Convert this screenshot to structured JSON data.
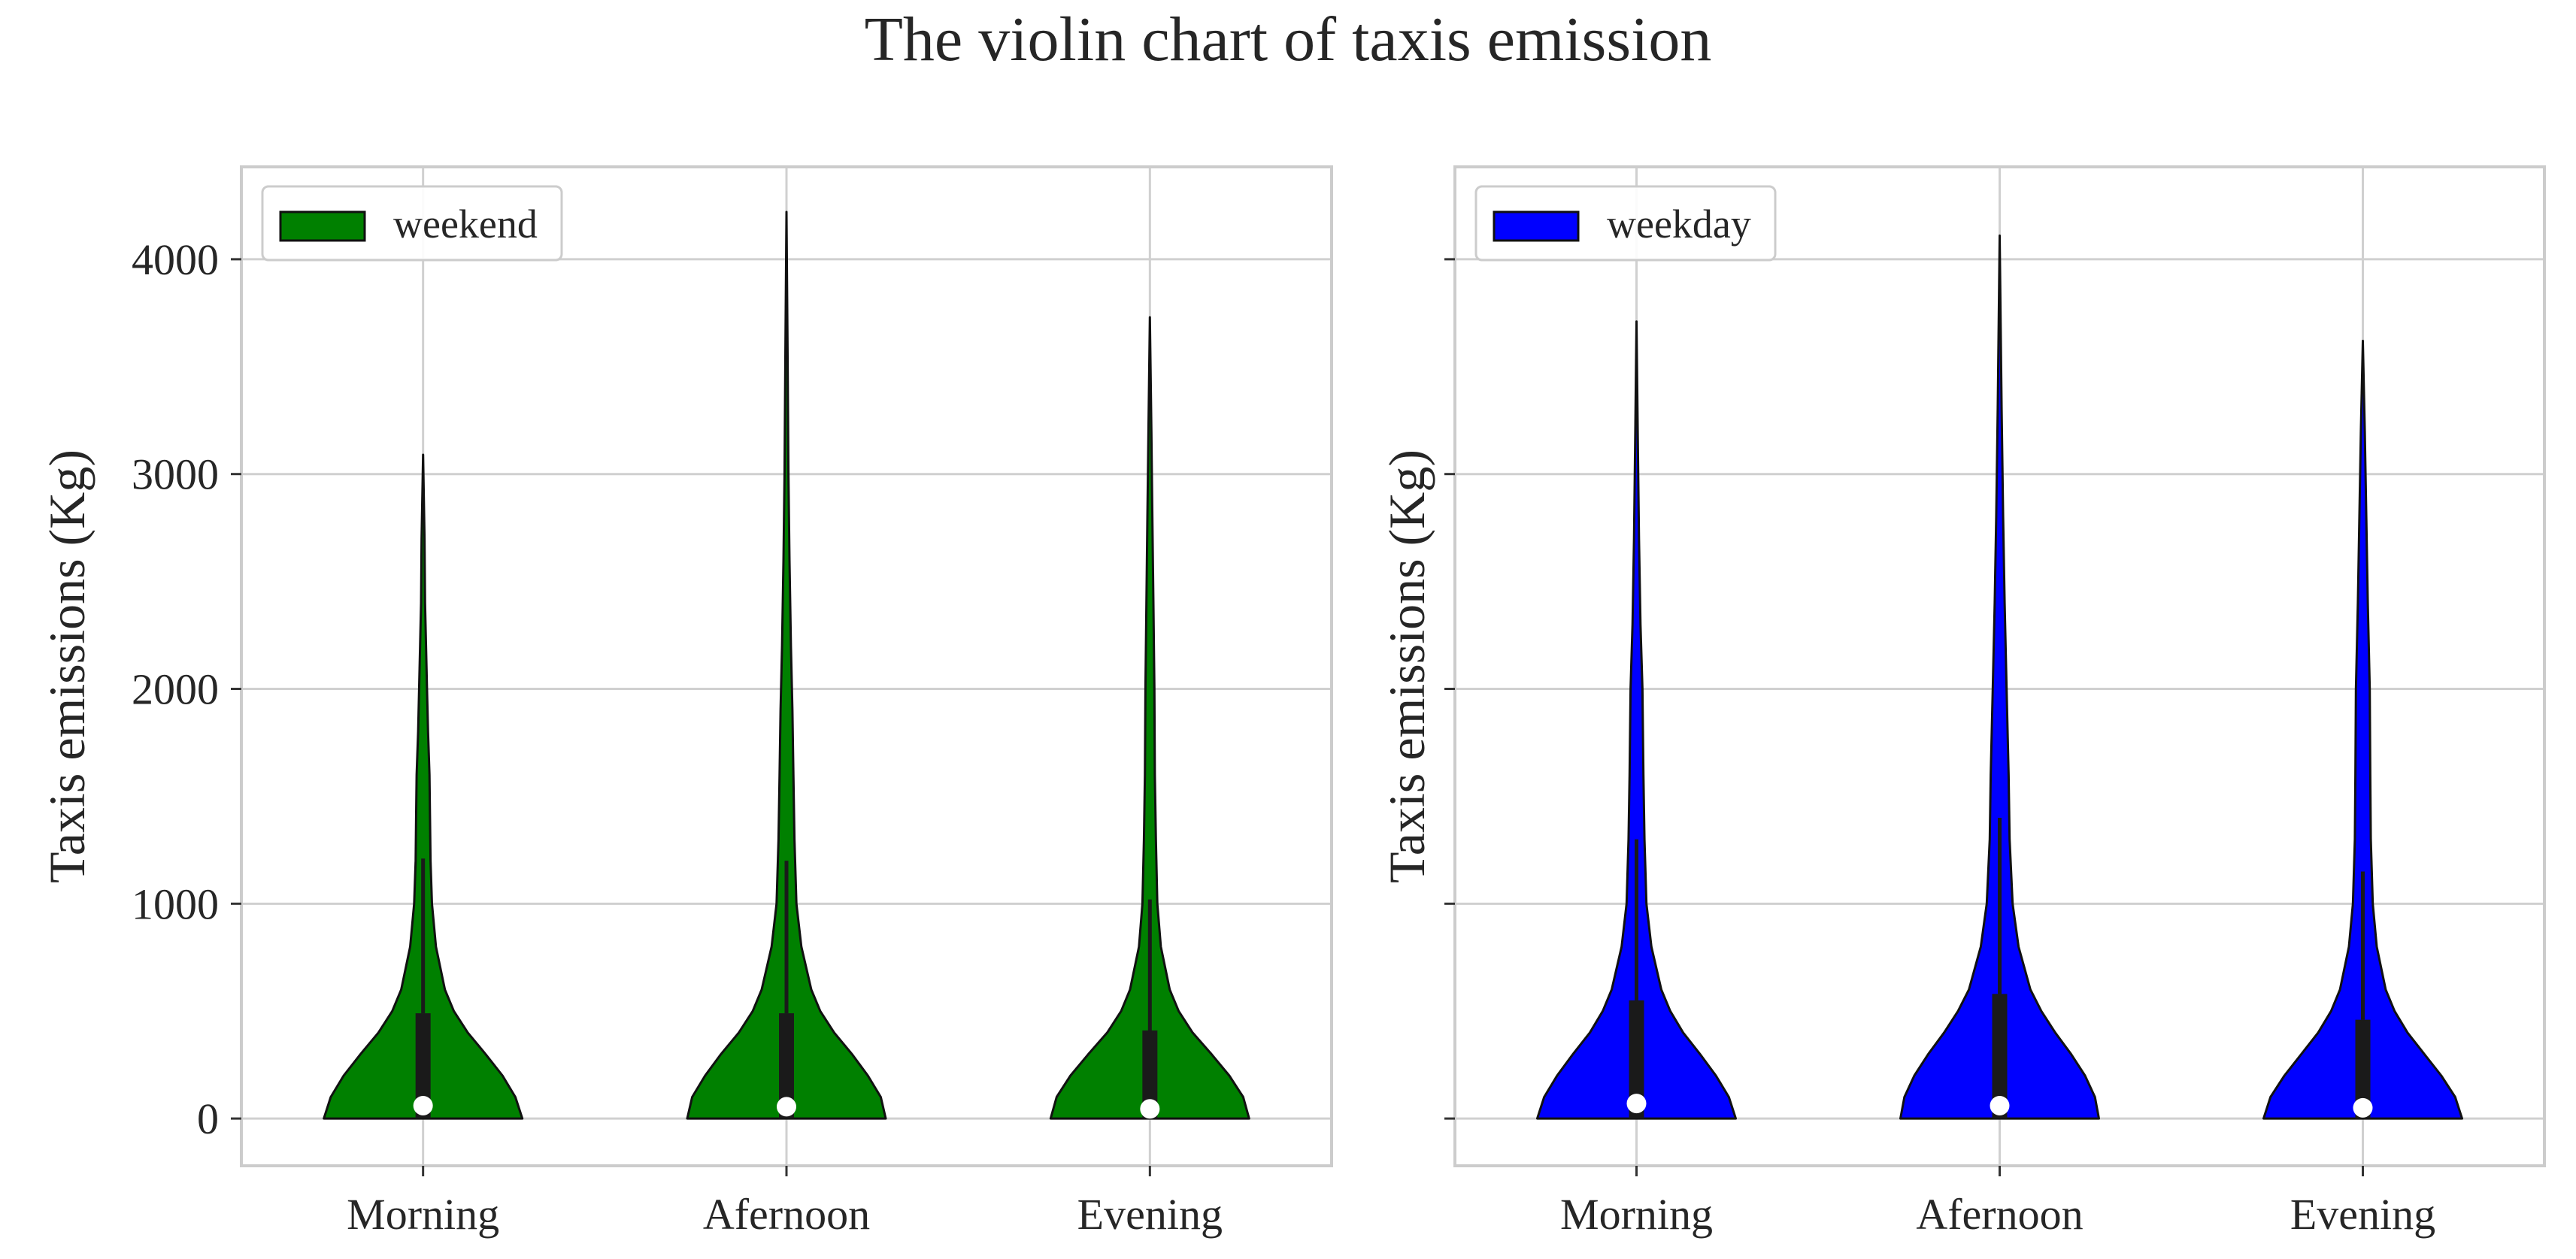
{
  "title": "The violin chart of taxis emission",
  "colors": {
    "weekend": "#008000",
    "weekday": "#0000ff",
    "grid": "#d0d0d0",
    "frame": "#cccccc",
    "box": "#1a1a1a"
  },
  "chart_data": [
    {
      "type": "violin",
      "legend": {
        "label": "weekend",
        "placement": "top-left"
      },
      "ylabel": "Taxis emissions (Kg)",
      "ylim": [
        -220,
        4430
      ],
      "yticks": [
        0,
        1000,
        2000,
        3000,
        4000
      ],
      "ytick_labels": [
        "0",
        "1000",
        "2000",
        "3000",
        "4000"
      ],
      "grid": true,
      "categories": [
        "Morning",
        "Afernoon",
        "Evening"
      ],
      "violins": [
        {
          "category": "Morning",
          "min": 0,
          "max": 3090,
          "q1": 0,
          "median": 60,
          "q3": 490,
          "whisker_high": 1210,
          "density": [
            [
              0,
              1.0
            ],
            [
              100,
              0.93
            ],
            [
              200,
              0.8
            ],
            [
              300,
              0.63
            ],
            [
              400,
              0.45
            ],
            [
              500,
              0.31
            ],
            [
              600,
              0.22
            ],
            [
              800,
              0.13
            ],
            [
              1000,
              0.09
            ],
            [
              1200,
              0.075
            ],
            [
              1400,
              0.07
            ],
            [
              1600,
              0.065
            ],
            [
              1800,
              0.05
            ],
            [
              2000,
              0.04
            ],
            [
              2200,
              0.03
            ],
            [
              2400,
              0.02
            ],
            [
              2700,
              0.015
            ],
            [
              3090,
              0.0
            ]
          ]
        },
        {
          "category": "Afernoon",
          "min": 0,
          "max": 4220,
          "q1": 0,
          "median": 55,
          "q3": 490,
          "whisker_high": 1200,
          "density": [
            [
              0,
              1.0
            ],
            [
              100,
              0.95
            ],
            [
              200,
              0.82
            ],
            [
              300,
              0.66
            ],
            [
              400,
              0.48
            ],
            [
              500,
              0.34
            ],
            [
              600,
              0.25
            ],
            [
              800,
              0.15
            ],
            [
              1000,
              0.1
            ],
            [
              1300,
              0.08
            ],
            [
              1600,
              0.07
            ],
            [
              1900,
              0.06
            ],
            [
              2200,
              0.045
            ],
            [
              2600,
              0.03
            ],
            [
              3000,
              0.02
            ],
            [
              3500,
              0.012
            ],
            [
              4220,
              0.0
            ]
          ]
        },
        {
          "category": "Evening",
          "min": 0,
          "max": 3730,
          "q1": 0,
          "median": 45,
          "q3": 410,
          "whisker_high": 1020,
          "density": [
            [
              0,
              1.0
            ],
            [
              100,
              0.94
            ],
            [
              200,
              0.8
            ],
            [
              300,
              0.62
            ],
            [
              400,
              0.43
            ],
            [
              500,
              0.29
            ],
            [
              600,
              0.2
            ],
            [
              800,
              0.11
            ],
            [
              1000,
              0.075
            ],
            [
              1300,
              0.06
            ],
            [
              1600,
              0.05
            ],
            [
              2000,
              0.045
            ],
            [
              2400,
              0.035
            ],
            [
              2800,
              0.025
            ],
            [
              3200,
              0.015
            ],
            [
              3730,
              0.0
            ]
          ]
        }
      ]
    },
    {
      "type": "violin",
      "legend": {
        "label": "weekday",
        "placement": "top-left"
      },
      "ylabel": "Taxis emissions (Kg)",
      "ylim": [
        -220,
        4430
      ],
      "yticks": [
        0,
        1000,
        2000,
        3000,
        4000
      ],
      "ytick_labels": [],
      "grid": true,
      "categories": [
        "Morning",
        "Afernoon",
        "Evening"
      ],
      "violins": [
        {
          "category": "Morning",
          "min": 0,
          "max": 3710,
          "q1": 0,
          "median": 70,
          "q3": 550,
          "whisker_high": 1300,
          "density": [
            [
              0,
              1.0
            ],
            [
              100,
              0.93
            ],
            [
              200,
              0.8
            ],
            [
              300,
              0.64
            ],
            [
              400,
              0.47
            ],
            [
              500,
              0.34
            ],
            [
              600,
              0.25
            ],
            [
              800,
              0.15
            ],
            [
              1000,
              0.1
            ],
            [
              1300,
              0.08
            ],
            [
              1600,
              0.07
            ],
            [
              2000,
              0.06
            ],
            [
              2300,
              0.04
            ],
            [
              2700,
              0.025
            ],
            [
              3200,
              0.012
            ],
            [
              3710,
              0.0
            ]
          ]
        },
        {
          "category": "Afernoon",
          "min": 0,
          "max": 4110,
          "q1": 0,
          "median": 60,
          "q3": 580,
          "whisker_high": 1400,
          "density": [
            [
              0,
              1.0
            ],
            [
              100,
              0.96
            ],
            [
              200,
              0.86
            ],
            [
              300,
              0.72
            ],
            [
              400,
              0.56
            ],
            [
              500,
              0.42
            ],
            [
              600,
              0.31
            ],
            [
              800,
              0.19
            ],
            [
              1000,
              0.13
            ],
            [
              1300,
              0.1
            ],
            [
              1600,
              0.09
            ],
            [
              2000,
              0.07
            ],
            [
              2400,
              0.05
            ],
            [
              2800,
              0.035
            ],
            [
              3300,
              0.02
            ],
            [
              3700,
              0.01
            ],
            [
              4110,
              0.0
            ]
          ]
        },
        {
          "category": "Evening",
          "min": 0,
          "max": 3620,
          "q1": 0,
          "median": 50,
          "q3": 460,
          "whisker_high": 1150,
          "density": [
            [
              0,
              1.0
            ],
            [
              100,
              0.93
            ],
            [
              200,
              0.79
            ],
            [
              300,
              0.62
            ],
            [
              400,
              0.45
            ],
            [
              500,
              0.32
            ],
            [
              600,
              0.23
            ],
            [
              800,
              0.14
            ],
            [
              1000,
              0.1
            ],
            [
              1300,
              0.08
            ],
            [
              1600,
              0.075
            ],
            [
              2000,
              0.07
            ],
            [
              2400,
              0.05
            ],
            [
              2800,
              0.035
            ],
            [
              3200,
              0.02
            ],
            [
              3620,
              0.0
            ]
          ]
        }
      ]
    }
  ]
}
